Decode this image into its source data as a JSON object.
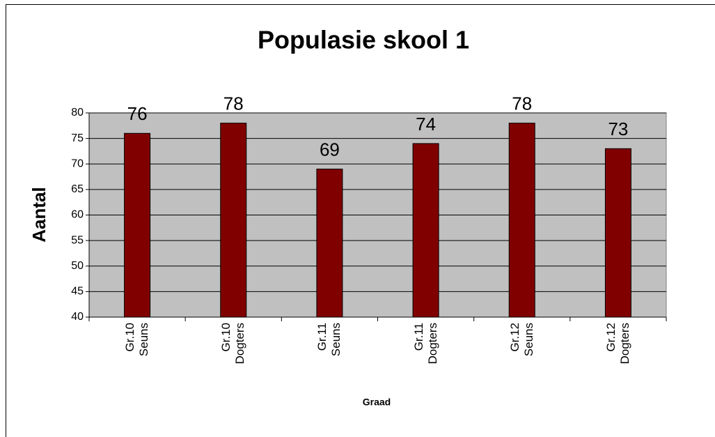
{
  "chart_data": {
    "type": "bar",
    "title": "Populasie skool 1",
    "categories": [
      "Gr.10 Seuns",
      "Gr.10 Dogters",
      "Gr.11 Seuns",
      "Gr.11 Dogters",
      "Gr.12 Seuns",
      "Gr.12 Dogters"
    ],
    "values": [
      76,
      78,
      69,
      74,
      78,
      73
    ],
    "color": "#800000",
    "plot_background": "#c0c0c0",
    "y_label": "Aantal",
    "x_label": "Graad",
    "ylim": [
      40,
      80
    ],
    "yticks": [
      40,
      45,
      50,
      55,
      60,
      65,
      70,
      75,
      80
    ],
    "grid": true
  }
}
